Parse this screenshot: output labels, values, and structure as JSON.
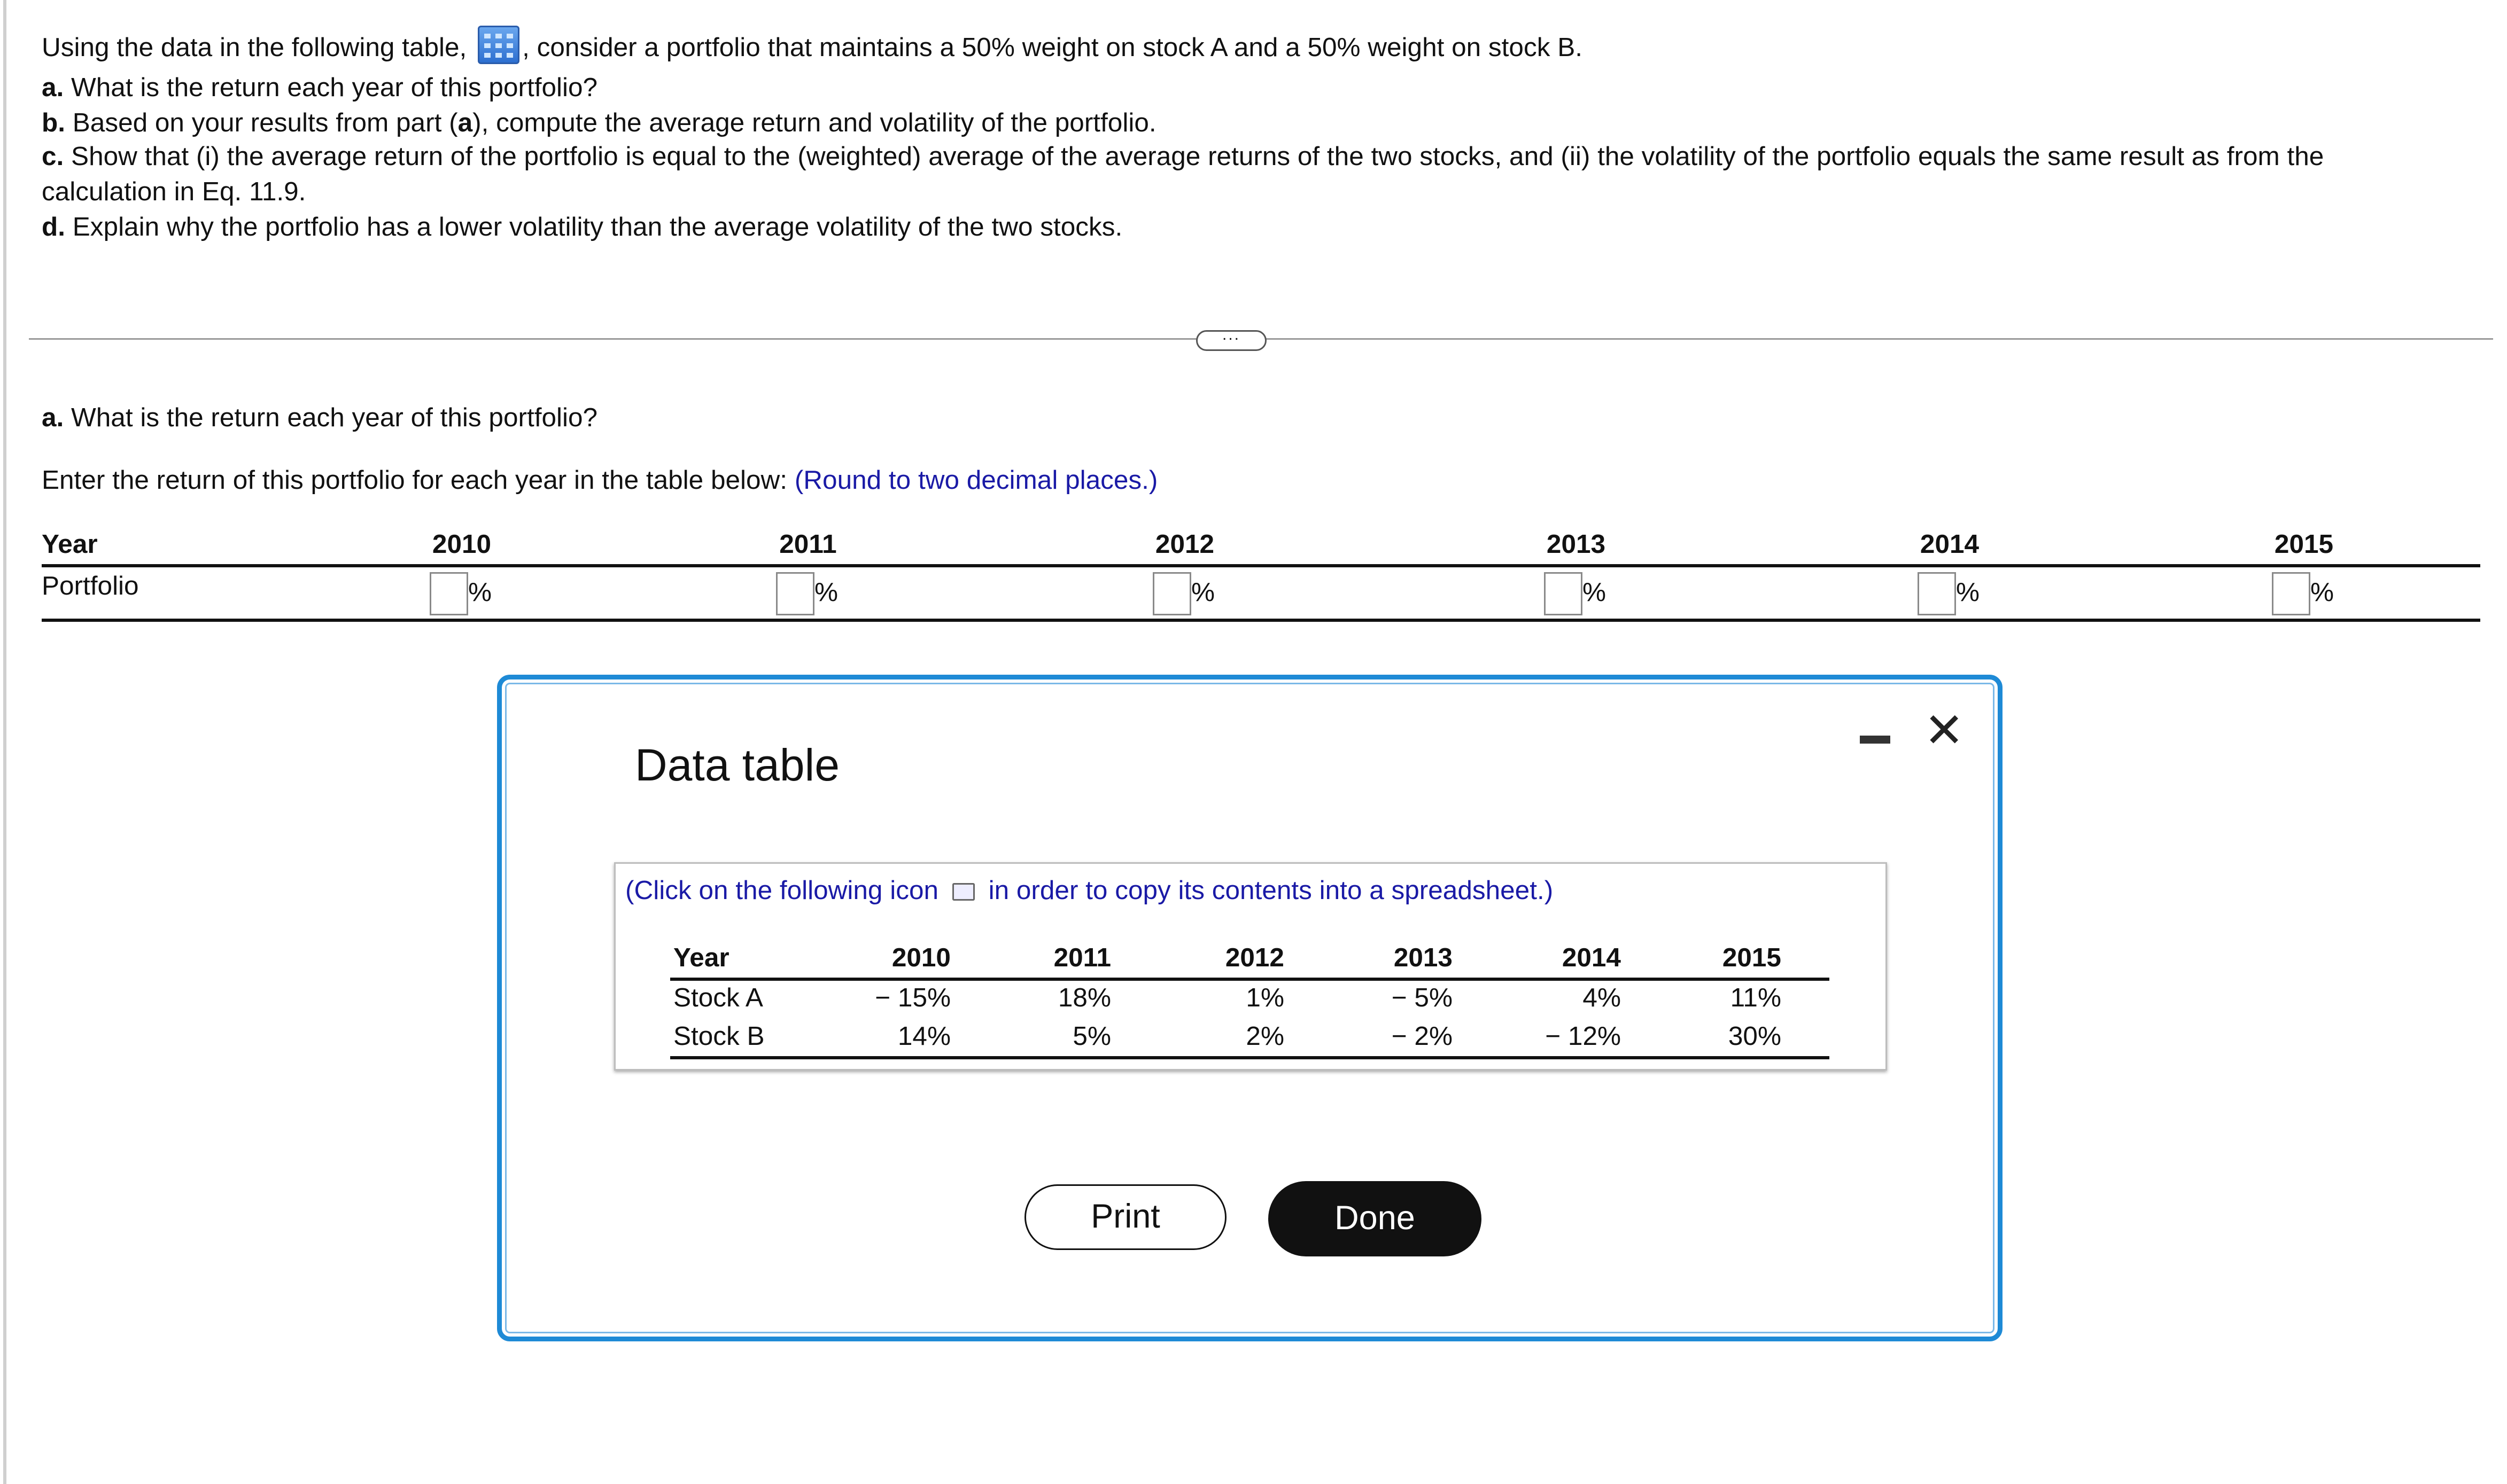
{
  "question": {
    "intro_before_icon": "Using the data in the following table,",
    "intro_after_icon": ", consider a portfolio that maintains a 50% weight on stock A and a 50% weight on stock B.",
    "table_icon": "data-table-icon",
    "parts": [
      {
        "label": "a.",
        "text": " What is the return each year of this portfolio?"
      },
      {
        "label": "b.",
        "text_before": " Based on your results from part (",
        "bold": "a",
        "text_after": "), compute the average return and volatility of the portfolio."
      },
      {
        "label": "c.",
        "text": " Show that (i) the average return of the portfolio is equal to the (weighted) average of the average returns of the two stocks, and (ii) the volatility of the portfolio equals the same result as from the",
        "text2": "calculation in Eq. 11.9."
      },
      {
        "label": "d.",
        "text": " Explain why the portfolio has a lower volatility than the average volatility of the two stocks."
      }
    ]
  },
  "expand_button": "...",
  "answer": {
    "part_label": "a.",
    "part_text": " What is the return each year of this portfolio?",
    "instruction": "Enter the return of this portfolio for each year in the table below:",
    "hint": "(Round to two decimal places.)",
    "table": {
      "header": "Year",
      "row_label": "Portfolio",
      "years": [
        "2010",
        "2011",
        "2012",
        "2013",
        "2014",
        "2015"
      ],
      "values": [
        "",
        "",
        "",
        "",
        "",
        ""
      ],
      "unit": "%"
    }
  },
  "modal": {
    "title": "Data table",
    "instruction_before": "(Click on the following icon",
    "instruction_after": "in order to copy its contents into a spreadsheet.)",
    "copy_icon": "copy-to-spreadsheet-icon",
    "table": {
      "header": "Year",
      "years": [
        "2010",
        "2011",
        "2012",
        "2013",
        "2014",
        "2015"
      ],
      "rows": [
        {
          "label": "Stock A",
          "values": [
            "− 15%",
            "18%",
            "1%",
            "− 5%",
            "4%",
            "11%"
          ]
        },
        {
          "label": "Stock B",
          "values": [
            "14%",
            "5%",
            "2%",
            "− 2%",
            "− 12%",
            "30%"
          ]
        }
      ]
    },
    "print_label": "Print",
    "done_label": "Done",
    "accent_color": "#1e8ad6"
  }
}
